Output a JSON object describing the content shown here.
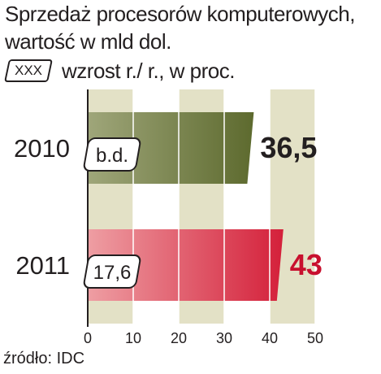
{
  "header": {
    "title_line1": "Sprzedaż procesorów komputerowych,",
    "title_line2": "wartość w mld dol.",
    "legend_badge": "XXX",
    "legend_text": "wzrost r./ r., w proc."
  },
  "source": "źródło: IDC",
  "chart_data": {
    "type": "bar",
    "orientation": "horizontal",
    "categories": [
      "2010",
      "2011"
    ],
    "values": [
      36.5,
      43
    ],
    "value_labels": [
      "36,5",
      "43"
    ],
    "growth_labels": [
      "b.d.",
      "17,6"
    ],
    "bar_colors": [
      "#6b7a3a",
      "#d8323f"
    ],
    "value_label_colors": [
      "#231f20",
      "#c8102e"
    ],
    "xlim": [
      0,
      50
    ],
    "xticks": [
      0,
      10,
      20,
      30,
      40,
      50
    ],
    "xtick_labels": [
      "0",
      "10",
      "20",
      "30",
      "40",
      "50"
    ],
    "grid": true
  }
}
